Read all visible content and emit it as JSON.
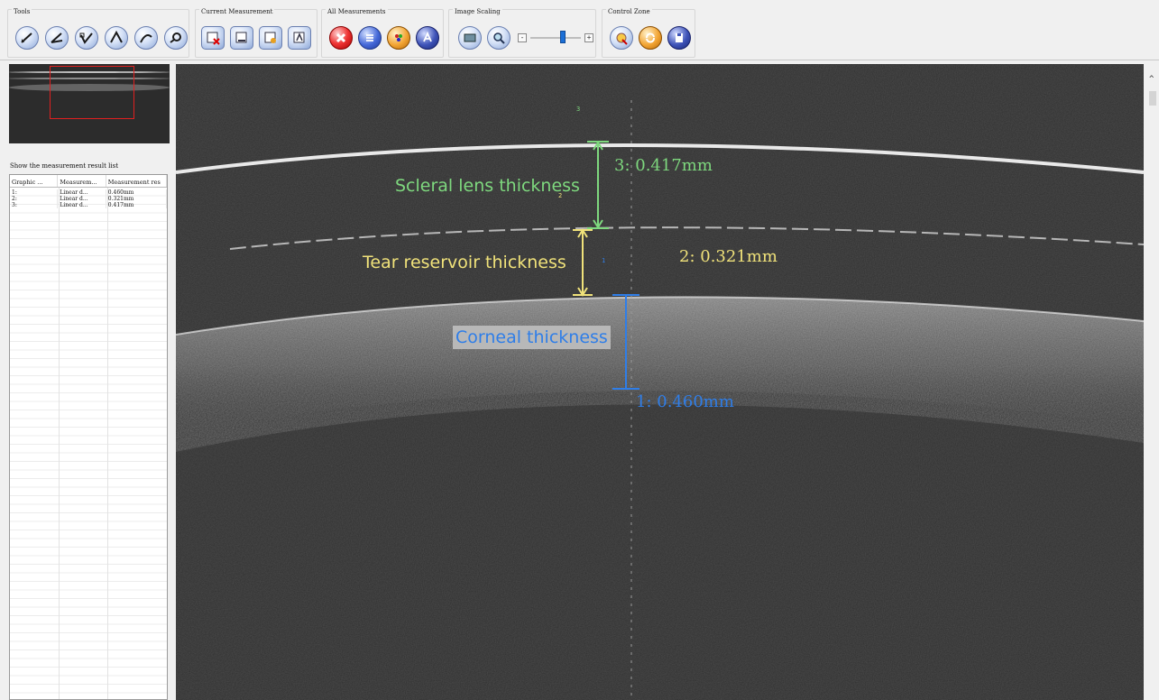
{
  "toolbar": {
    "groups": [
      {
        "title": "Tools",
        "buttons": [
          "line-tool-icon",
          "angle-tool-icon",
          "polyline-tool-icon",
          "arc-tool-icon",
          "curve-tool-icon",
          "zoom-measure-icon"
        ]
      },
      {
        "title": "Current Measurement",
        "buttons": [
          "delete-current-icon",
          "edit-current-icon",
          "color-current-icon",
          "label-current-icon"
        ]
      },
      {
        "title": "All Measurements",
        "buttons": [
          "delete-all-icon",
          "list-all-icon",
          "palette-all-icon",
          "text-all-icon"
        ]
      },
      {
        "title": "Image Scaling",
        "buttons": [
          "fit-image-icon",
          "zoom-image-icon"
        ],
        "minus": "-",
        "plus": "+",
        "level": 0.65
      },
      {
        "title": "Control Zone",
        "buttons": [
          "clear-zone-icon",
          "refresh-zone-icon",
          "save-zone-icon"
        ]
      }
    ]
  },
  "result_panel": {
    "caption": "Show the measurement result list",
    "columns": [
      "Graphic ...",
      "Measurem...",
      "Measurement res"
    ],
    "rows": [
      [
        "1:",
        "Linear d...",
        "0.460mm"
      ],
      [
        "2:",
        "Linear d...",
        "0.321mm"
      ],
      [
        "3:",
        "Linear d...",
        "0.417mm"
      ]
    ]
  },
  "annotations": {
    "scleral_label": "Scleral lens thickness",
    "tear_label": "Tear reservoir thickness",
    "corneal_label": "Corneal thickness",
    "m3": "3: 0.417mm",
    "m2": "2: 0.321mm",
    "m1": "1: 0.460mm",
    "tag3": "3",
    "tag2": "2",
    "tag1": "1"
  },
  "colors": {
    "scleral": "#7ed87e",
    "tear": "#f0e27a",
    "corneal": "#2f7ee8",
    "roi": "#e02020"
  }
}
